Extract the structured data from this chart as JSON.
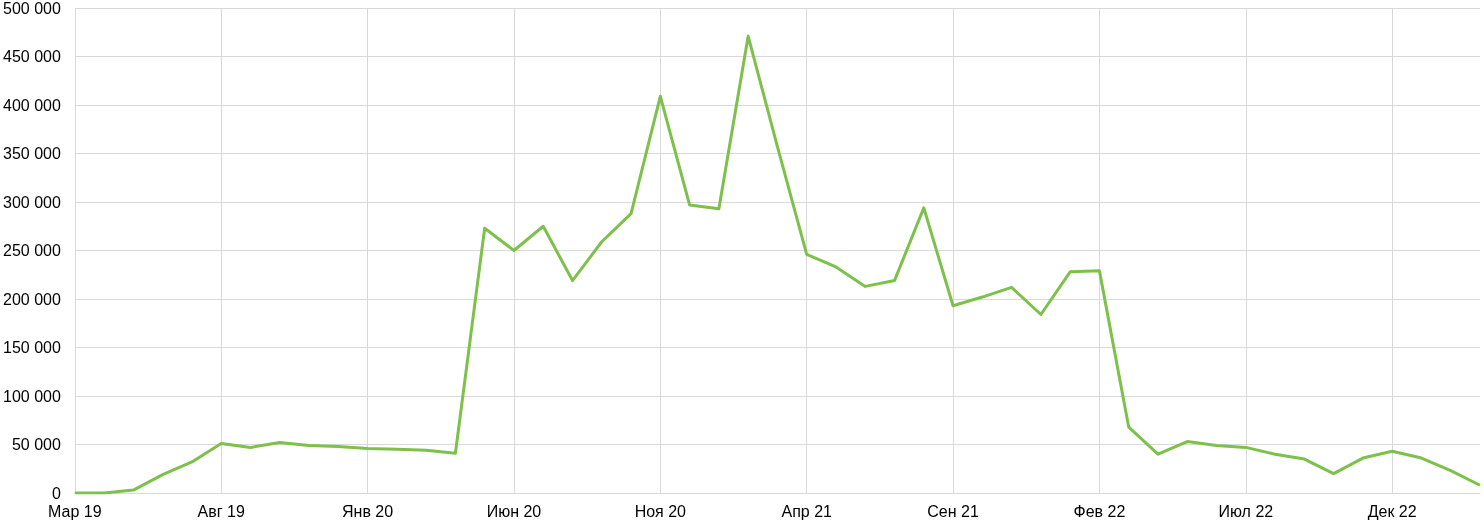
{
  "chart_data": {
    "type": "line",
    "categories": [
      "Мар 19",
      null,
      null,
      null,
      null,
      "Авг 19",
      null,
      null,
      null,
      null,
      "Янв 20",
      null,
      null,
      null,
      null,
      "Июн 20",
      null,
      null,
      null,
      null,
      "Ноя 20",
      null,
      null,
      null,
      null,
      "Апр 21",
      null,
      null,
      null,
      null,
      "Сен 21",
      null,
      null,
      null,
      null,
      "Фев 22",
      null,
      null,
      null,
      null,
      "Июл 22",
      null,
      null,
      null,
      null,
      "Дек 22",
      null,
      null,
      null
    ],
    "series": [
      {
        "color": "#7dc04b",
        "values": [
          0,
          0,
          3000,
          19000,
          32000,
          51000,
          47000,
          52000,
          49000,
          48000,
          46000,
          45000,
          44000,
          41000,
          273000,
          250000,
          275000,
          219000,
          259000,
          288000,
          409000,
          297000,
          293000,
          471000,
          357000,
          246000,
          233000,
          213000,
          219000,
          294000,
          193000,
          202000,
          212000,
          184000,
          228000,
          229000,
          68000,
          40000,
          53000,
          49000,
          47000,
          40000,
          35000,
          20000,
          36000,
          43000,
          36000,
          23000,
          8000
        ]
      }
    ],
    "ylim": [
      0,
      500000
    ],
    "yticks": [
      {
        "value": 0,
        "label": "0"
      },
      {
        "value": 50000,
        "label": "50 000"
      },
      {
        "value": 100000,
        "label": "100 000"
      },
      {
        "value": 150000,
        "label": "150 000"
      },
      {
        "value": 200000,
        "label": "200 000"
      },
      {
        "value": 250000,
        "label": "250 000"
      },
      {
        "value": 300000,
        "label": "300 000"
      },
      {
        "value": 350000,
        "label": "350 000"
      },
      {
        "value": 400000,
        "label": "400 000"
      },
      {
        "value": 450000,
        "label": "450 000"
      },
      {
        "value": 500000,
        "label": "500 000"
      }
    ],
    "grid": true,
    "marker": "none",
    "line_style": "solid"
  }
}
